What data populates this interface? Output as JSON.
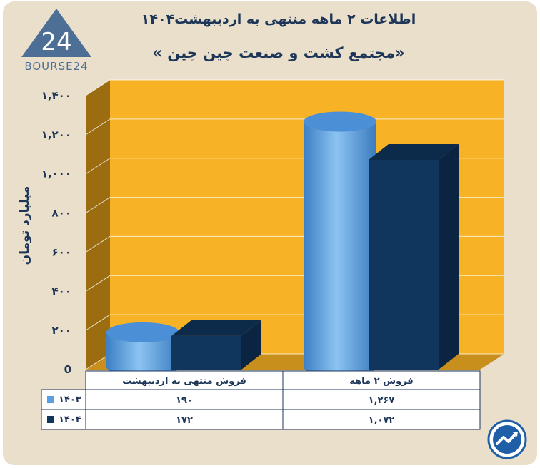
{
  "header": {
    "title": "اطلاعات ۲ ماهه منتهی به اردیبهشت۱۴۰۴",
    "subtitle": "«مجتمع کشت و صنعت چین چین »",
    "logo_text": "BOURSE24",
    "logo_mark": "24"
  },
  "colors": {
    "panel": "#e9dfcb",
    "plot_back": "#f7b325",
    "plot_side": "#9b6c10",
    "series_1403": "#5a9fe0",
    "series_1404": "#11365e",
    "text": "#1d3557"
  },
  "icons": {
    "badge": "trend-arrow-icon"
  },
  "chart_data": {
    "type": "bar",
    "title": "اطلاعات ۲ ماهه منتهی به اردیبهشت۱۴۰۴",
    "subtitle": "«مجتمع کشت و صنعت چین چین »",
    "ylabel": "میلیارد تومان",
    "xlabel": "",
    "ylim": [
      0,
      1400
    ],
    "yticks": [
      0,
      200,
      400,
      600,
      800,
      1000,
      1200,
      1400
    ],
    "ytick_labels": [
      "0",
      "۲۰۰",
      "۴۰۰",
      "۶۰۰",
      "۸۰۰",
      "۱,۰۰۰",
      "۱,۲۰۰",
      "۱,۴۰۰"
    ],
    "categories": [
      "فروش منتهی به  اردیبهشت",
      "فروش ۲  ماهه"
    ],
    "series": [
      {
        "name": "۱۴۰۳",
        "values": [
          190,
          1267
        ],
        "labels": [
          "۱۹۰",
          "۱,۲۶۷"
        ],
        "shape": "cylinder"
      },
      {
        "name": "۱۴۰۴",
        "values": [
          172,
          1072
        ],
        "labels": [
          "۱۷۲",
          "۱,۰۷۲"
        ],
        "shape": "box"
      }
    ],
    "grid": true,
    "legend": "data-table-left"
  }
}
